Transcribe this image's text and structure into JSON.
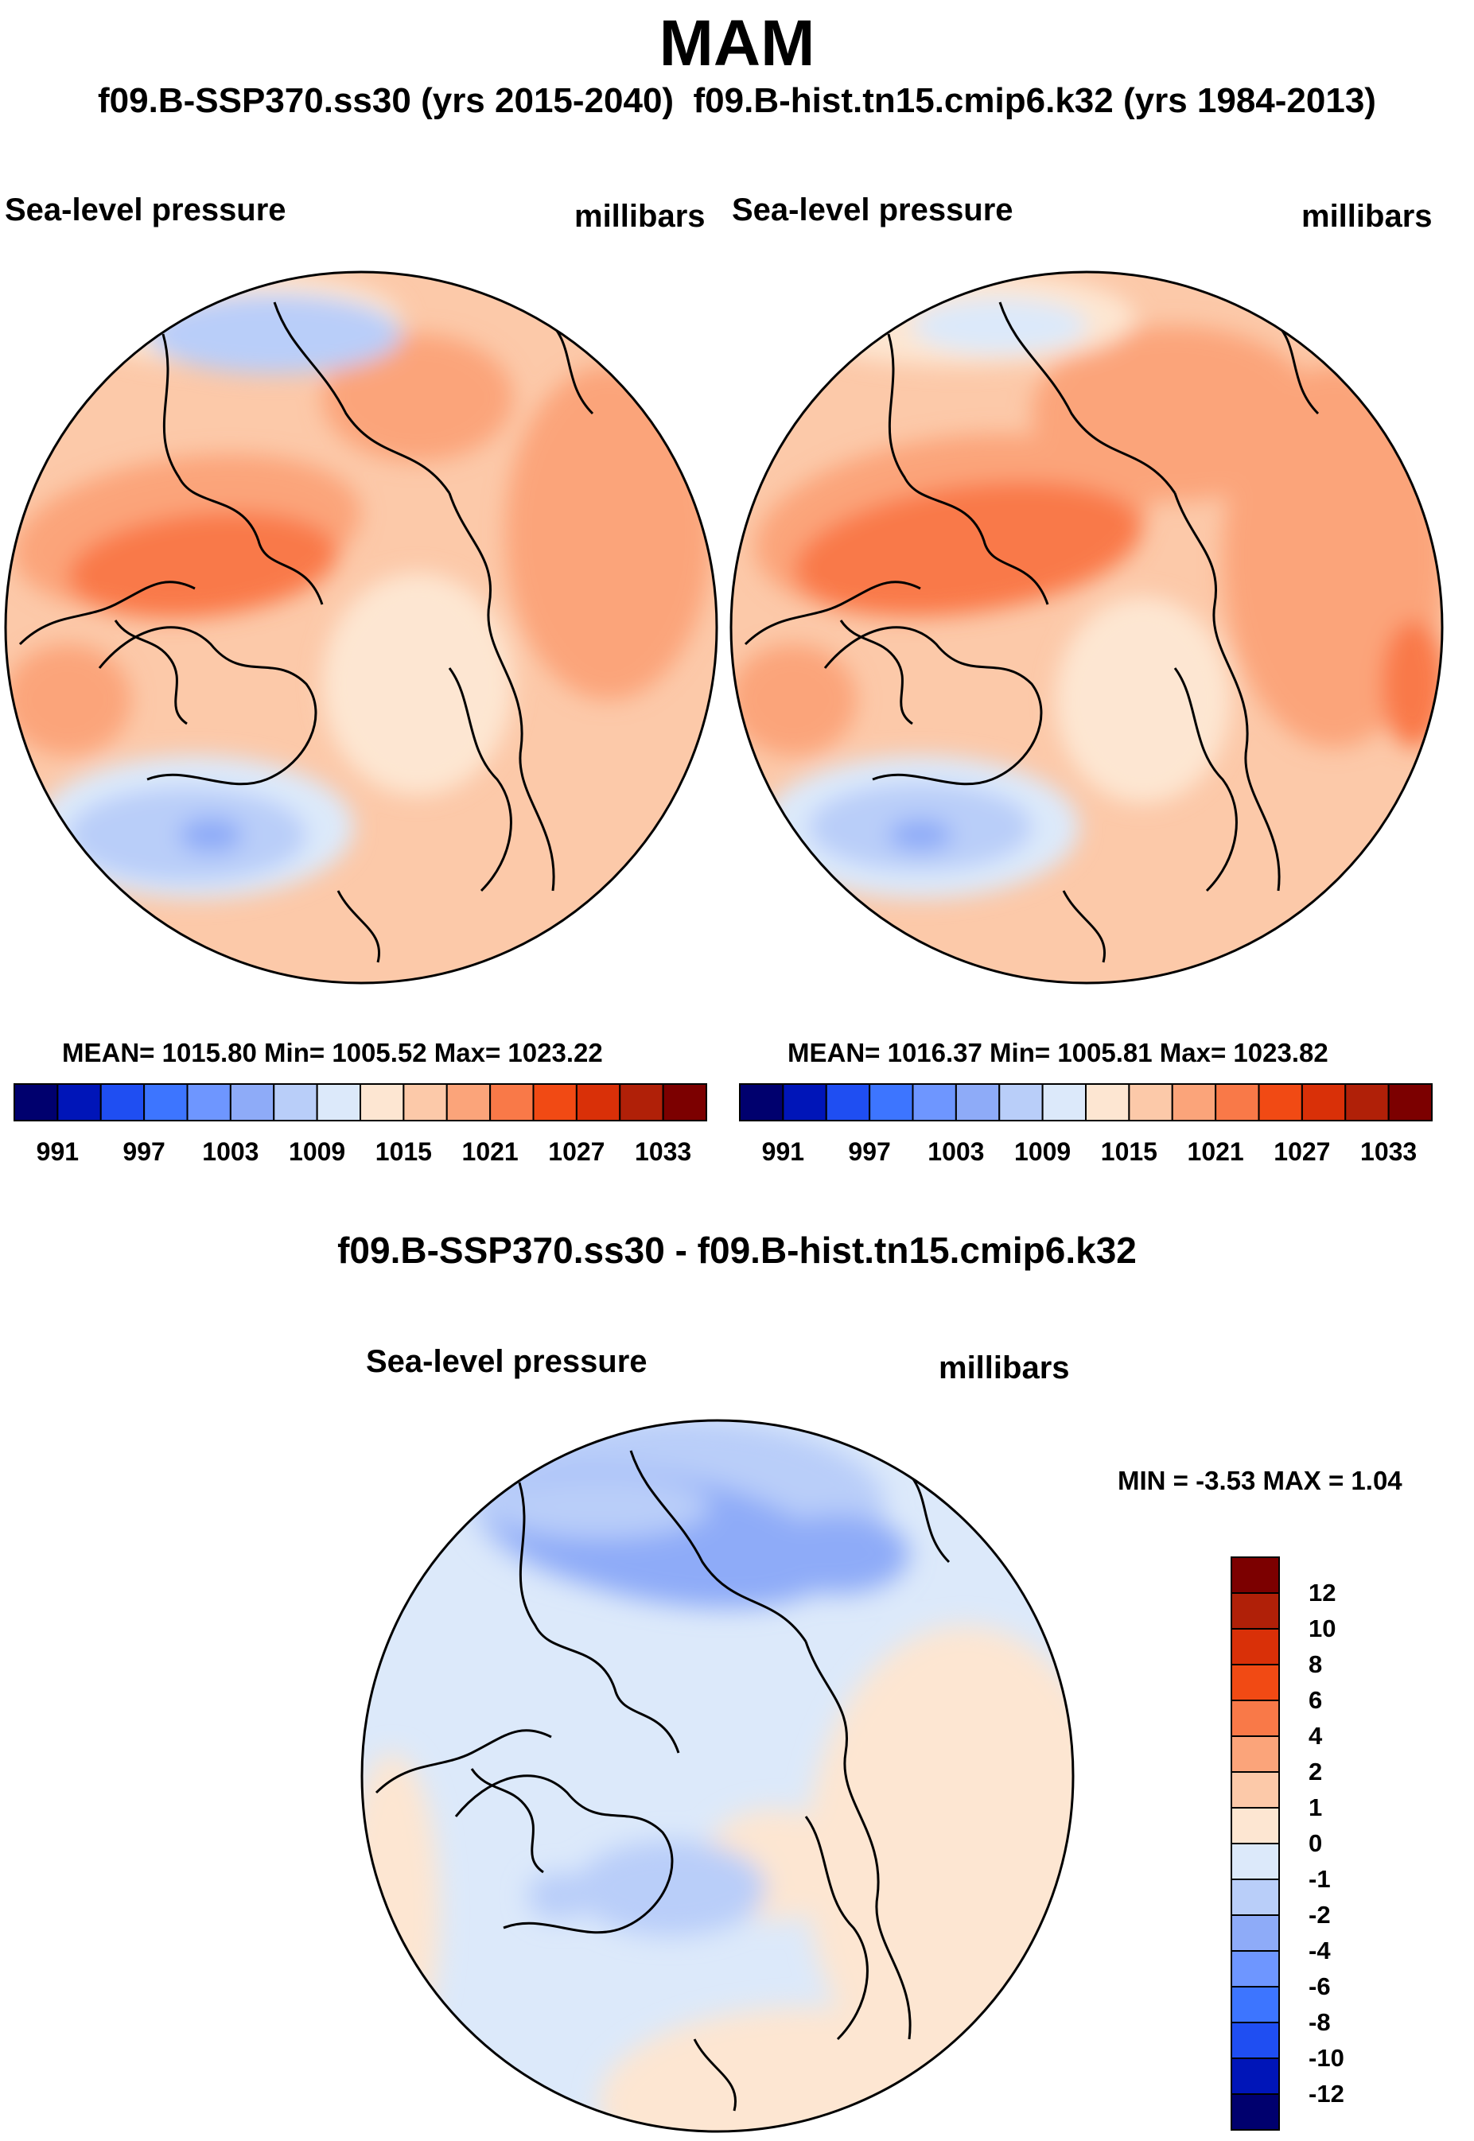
{
  "title": "MAM",
  "header": {
    "left_run": "f09.B-SSP370.ss30 (yrs 2015-2040)",
    "right_run": "f09.B-hist.tn15.cmip6.k32 (yrs 1984-2013)"
  },
  "panels": [
    {
      "variable": "Sea-level pressure",
      "units": "millibars",
      "stats": "MEAN= 1015.80  Min= 1005.52  Max= 1023.22"
    },
    {
      "variable": "Sea-level pressure",
      "units": "millibars",
      "stats": "MEAN= 1016.37  Min= 1005.81  Max= 1023.82"
    }
  ],
  "abs_colorbar": {
    "colors": [
      "#00006e",
      "#0015b8",
      "#1f4ef2",
      "#3d75ff",
      "#6e96ff",
      "#8eabf8",
      "#b9cef9",
      "#dce9fa",
      "#fde6d2",
      "#fcc9a9",
      "#fba47a",
      "#f97948",
      "#f14a14",
      "#d93008",
      "#b02008",
      "#7c0000"
    ],
    "labels": [
      "991",
      "997",
      "1003",
      "1009",
      "1015",
      "1021",
      "1027",
      "1033"
    ]
  },
  "diff": {
    "title": "f09.B-SSP370.ss30 - f09.B-hist.tn15.cmip6.k32",
    "variable": "Sea-level pressure",
    "units": "millibars",
    "minmax": "MIN =  -3.53 MAX =   1.04",
    "colors": [
      "#7c0000",
      "#b02008",
      "#d93008",
      "#f14a14",
      "#f97948",
      "#fba47a",
      "#fcc9a9",
      "#fde6d2",
      "#dce9fa",
      "#b9cef9",
      "#8eabf8",
      "#6e96ff",
      "#3d75ff",
      "#1f4ef2",
      "#0015b8",
      "#00006e"
    ],
    "labels": [
      "12",
      "10",
      "8",
      "6",
      "4",
      "2",
      "1",
      "0",
      "-1",
      "-2",
      "-4",
      "-6",
      "-8",
      "-10",
      "-12"
    ]
  },
  "map_fields": {
    "panel1": {
      "base": "#fcc9a9",
      "features": [
        "#fba47a",
        "#f97948",
        "#fde6d2",
        "#dce9fa",
        "#b9cef9",
        "#8eabf8"
      ]
    },
    "panel2": {
      "base": "#fcc9a9",
      "features": [
        "#fba47a",
        "#f97948",
        "#fde6d2",
        "#dce9fa",
        "#b9cef9",
        "#8eabf8"
      ]
    },
    "diff": {
      "base": "#dce9fa",
      "features": [
        "#fde6d2",
        "#b9cef9",
        "#8eabf8"
      ]
    }
  }
}
